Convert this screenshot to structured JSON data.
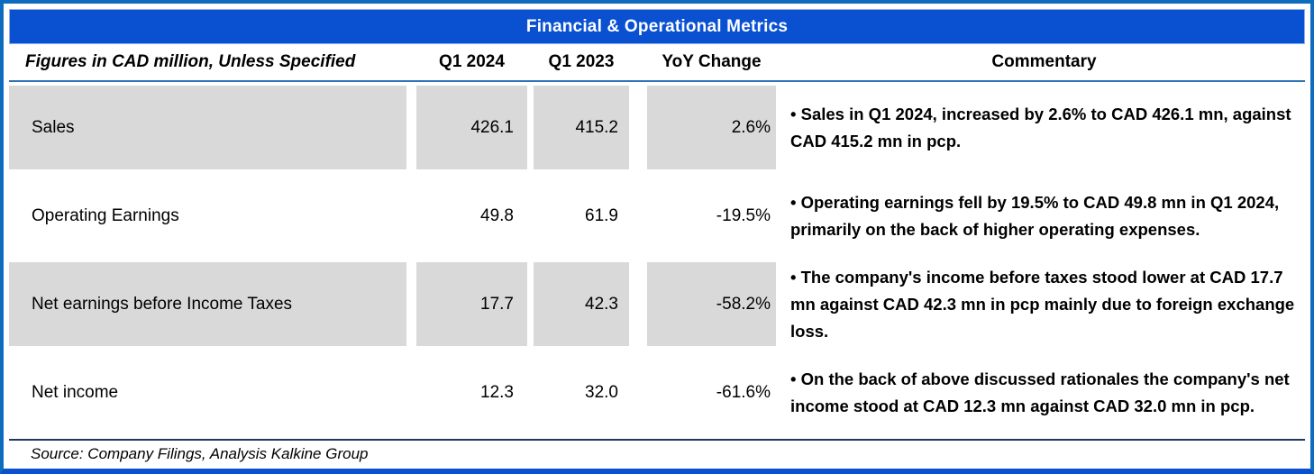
{
  "title": "Financial & Operational Metrics",
  "colors": {
    "title_bar": "#0A51D2",
    "frame_border": "#0D6CBE",
    "bottom_bar": "#0A51D2",
    "cell_gray": "#D9D9D9",
    "header_rule": "#2E74B5",
    "source_rule": "#1F3864",
    "title_text": "#FFFFFF",
    "body_text": "#000000"
  },
  "table": {
    "columns": [
      "Figures in CAD million, Unless Specified",
      "Q1 2024",
      "Q1 2023",
      "YoY Change",
      "Commentary"
    ],
    "rows": [
      {
        "metric": "Sales",
        "q1_2024": "426.1",
        "q1_2023": "415.2",
        "yoy": "2.6%",
        "commentary": "• Sales in Q1 2024, increased by 2.6% to CAD 426.1 mn, against CAD 415.2 mn in pcp.",
        "shaded": true
      },
      {
        "metric": "Operating Earnings",
        "q1_2024": "49.8",
        "q1_2023": "61.9",
        "yoy": "-19.5%",
        "commentary": "• Operating earnings fell by 19.5% to CAD 49.8 mn in Q1 2024, primarily on the back of higher operating expenses.",
        "shaded": false
      },
      {
        "metric": "Net earnings before Income Taxes",
        "q1_2024": "17.7",
        "q1_2023": "42.3",
        "yoy": "-58.2%",
        "commentary": "• The company's income before taxes stood lower at CAD 17.7 mn against CAD 42.3 mn in pcp mainly due to foreign exchange loss.",
        "shaded": true
      },
      {
        "metric": "Net income",
        "q1_2024": "12.3",
        "q1_2023": "32.0",
        "yoy": "-61.6%",
        "commentary": "• On the back of above discussed rationales the company's net income stood at CAD 12.3 mn against CAD 32.0 mn in pcp.",
        "shaded": false
      }
    ]
  },
  "footer": {
    "source": "Source: Company Filings, Analysis Kalkine Group"
  }
}
